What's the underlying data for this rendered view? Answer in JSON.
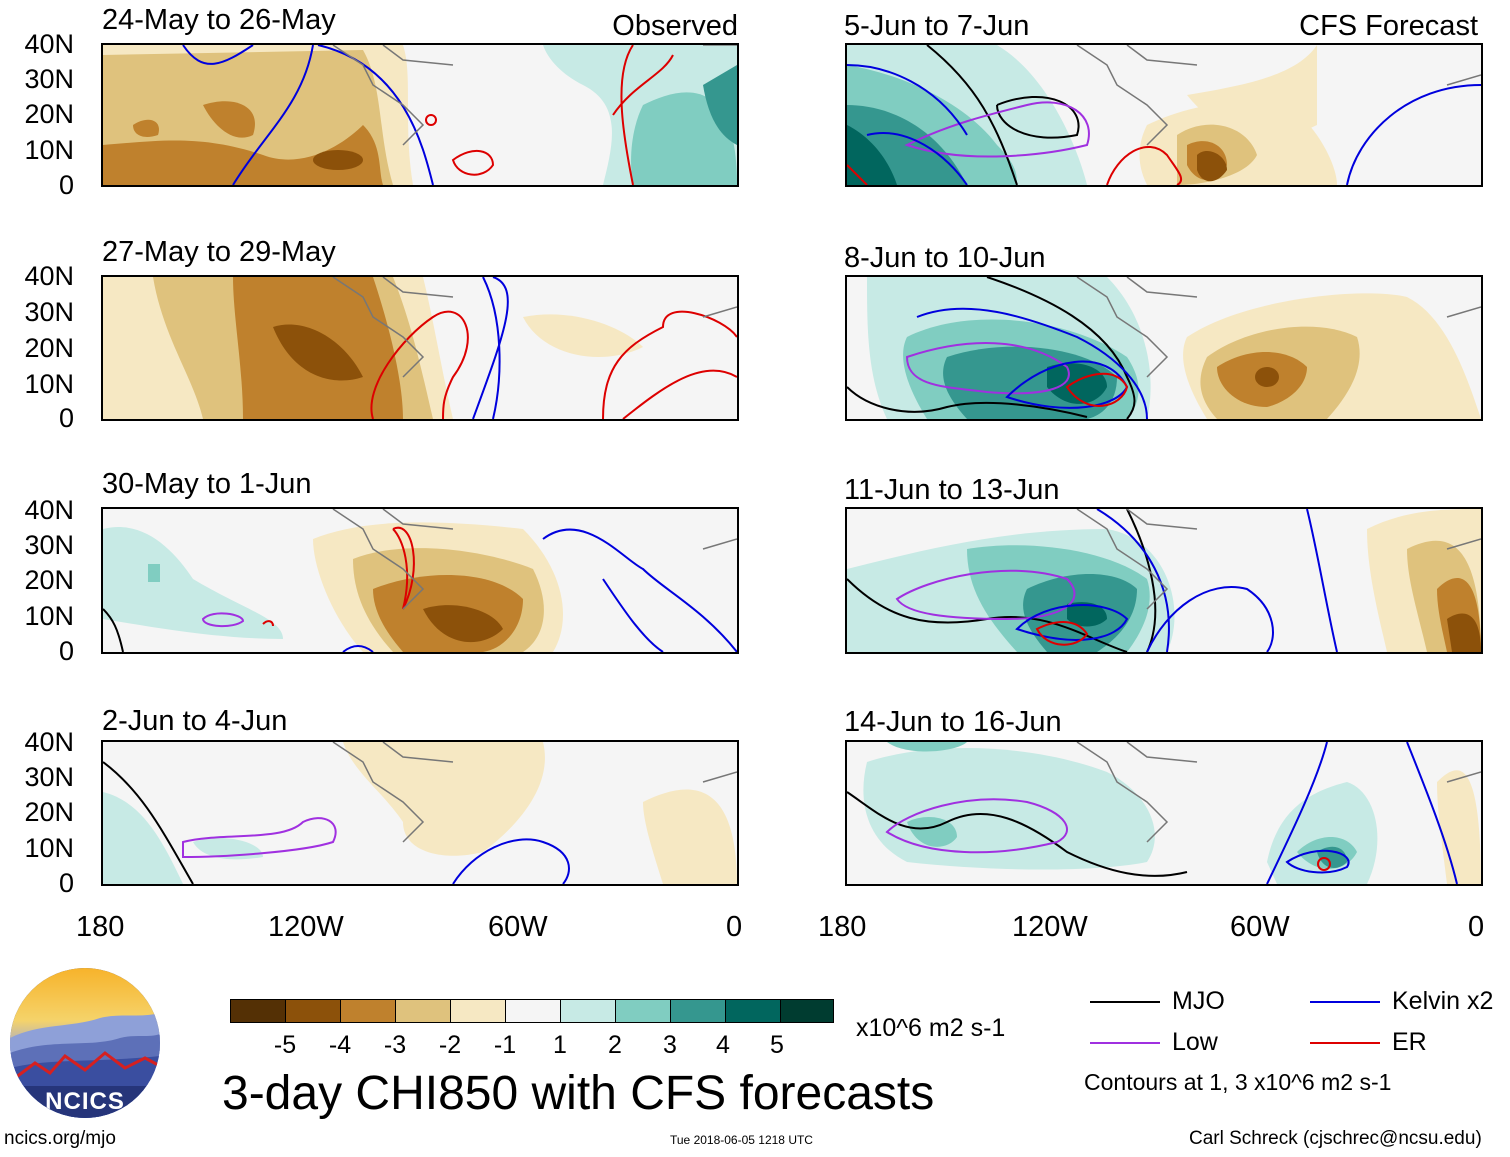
{
  "observed_label": "Observed",
  "forecast_label": "CFS Forecast",
  "lat_labels": [
    "40N",
    "30N",
    "20N",
    "10N",
    "0"
  ],
  "lon_labels": [
    "180",
    "120W",
    "60W",
    "0"
  ],
  "panels_left": [
    {
      "title": "24-May to 26-May"
    },
    {
      "title": "27-May to 29-May"
    },
    {
      "title": "30-May to 1-Jun"
    },
    {
      "title": "2-Jun to 4-Jun"
    }
  ],
  "panels_right": [
    {
      "title": "5-Jun to 7-Jun"
    },
    {
      "title": "8-Jun to 10-Jun"
    },
    {
      "title": "11-Jun to 13-Jun"
    },
    {
      "title": "14-Jun to 16-Jun"
    }
  ],
  "colorbar": {
    "labels": [
      "-5",
      "-4",
      "-3",
      "-2",
      "-1",
      "1",
      "2",
      "3",
      "4",
      "5"
    ],
    "colors": [
      "#543005",
      "#8c510a",
      "#bf812d",
      "#dfc27d",
      "#f6e8c3",
      "#f5f5f5",
      "#c7eae5",
      "#80cdc1",
      "#35978f",
      "#01665e",
      "#003c30"
    ],
    "units": "x10^6 m2 s-1"
  },
  "main_title": "3-day CHI850 with CFS forecasts",
  "legend": {
    "mjo": "MJO",
    "low": "Low",
    "kelvin": "Kelvin x2",
    "er": "ER",
    "colors": {
      "mjo": "#000000",
      "low": "#a030e0",
      "kelvin": "#0000dd",
      "er": "#dd0000"
    },
    "contours_note": "Contours at 1, 3 x10^6 m2 s-1"
  },
  "logo": {
    "text": "NCICS"
  },
  "footer": {
    "website": "ncics.org/mjo",
    "timestamp": "Tue 2018-06-05 1218 UTC",
    "credit": "Carl Schreck (cjschrec@ncsu.edu)"
  }
}
